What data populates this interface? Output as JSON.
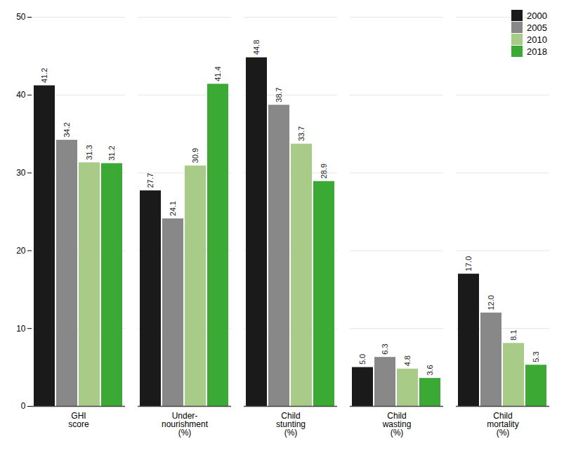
{
  "chart_data": {
    "type": "bar",
    "categories": [
      "GHI\nscore",
      "Under-\nnourishment\n(%)",
      "Child\nstunting\n(%)",
      "Child\nwasting\n(%)",
      "Child\nmortality\n(%)"
    ],
    "series": [
      {
        "name": "2000",
        "color": "#1a1a1a",
        "values": [
          41.2,
          27.7,
          44.8,
          5.0,
          17.0
        ],
        "value_labels": [
          "41.2",
          "27.7",
          "44.8",
          "5.0",
          "17.0"
        ]
      },
      {
        "name": "2005",
        "color": "#888888",
        "values": [
          34.2,
          24.1,
          38.7,
          6.3,
          12.0
        ],
        "value_labels": [
          "34.2",
          "24.1",
          "38.7",
          "6.3",
          "12.0"
        ]
      },
      {
        "name": "2010",
        "color": "#a8cc88",
        "values": [
          31.3,
          30.9,
          33.7,
          4.8,
          8.1
        ],
        "value_labels": [
          "31.3",
          "30.9",
          "33.7",
          "4.8",
          "8.1"
        ]
      },
      {
        "name": "2018",
        "color": "#3aaa35",
        "values": [
          31.2,
          41.4,
          28.9,
          3.6,
          5.3
        ],
        "value_labels": [
          "31.2",
          "41.4",
          "28.9",
          "3.6",
          "5.3"
        ]
      }
    ],
    "ylim": [
      0,
      50
    ],
    "yticks": [
      0,
      10,
      20,
      30,
      40,
      50
    ],
    "grid": true,
    "legend": "upper right",
    "data_labels": true
  }
}
